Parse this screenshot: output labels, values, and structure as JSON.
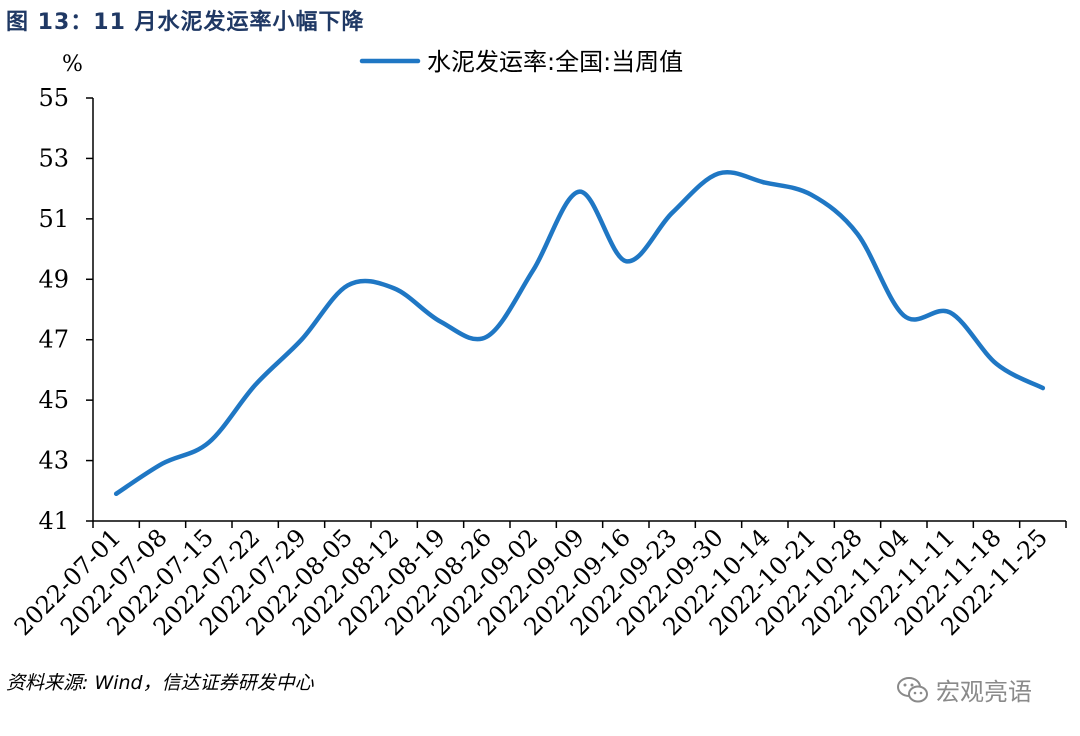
{
  "title": "图 13：11 月水泥发运率小幅下降",
  "unit": "%",
  "source": "资料来源: Wind，信达证券研发中心",
  "watermark": "宏观亮语",
  "colors": {
    "line": "#1f77c4",
    "title": "#1f3864"
  },
  "chart_data": {
    "type": "line",
    "title": "",
    "xlabel": "",
    "ylabel": "%",
    "ylim": [
      41,
      55
    ],
    "yticks": [
      41,
      43,
      45,
      47,
      49,
      51,
      53,
      55
    ],
    "grid": false,
    "legend_position": "top-center",
    "categories": [
      "2022-07-01",
      "2022-07-08",
      "2022-07-15",
      "2022-07-22",
      "2022-07-29",
      "2022-08-05",
      "2022-08-12",
      "2022-08-19",
      "2022-08-26",
      "2022-09-02",
      "2022-09-09",
      "2022-09-16",
      "2022-09-23",
      "2022-09-30",
      "2022-10-14",
      "2022-10-21",
      "2022-10-28",
      "2022-11-04",
      "2022-11-11",
      "2022-11-18",
      "2022-11-25"
    ],
    "series": [
      {
        "name": "水泥发运率:全国:当周值",
        "values": [
          41.9,
          42.9,
          43.6,
          45.5,
          47.0,
          48.8,
          48.7,
          47.6,
          47.1,
          49.3,
          51.9,
          49.6,
          51.2,
          52.5,
          52.2,
          51.8,
          50.5,
          47.8,
          47.9,
          46.2,
          45.4
        ]
      }
    ]
  }
}
